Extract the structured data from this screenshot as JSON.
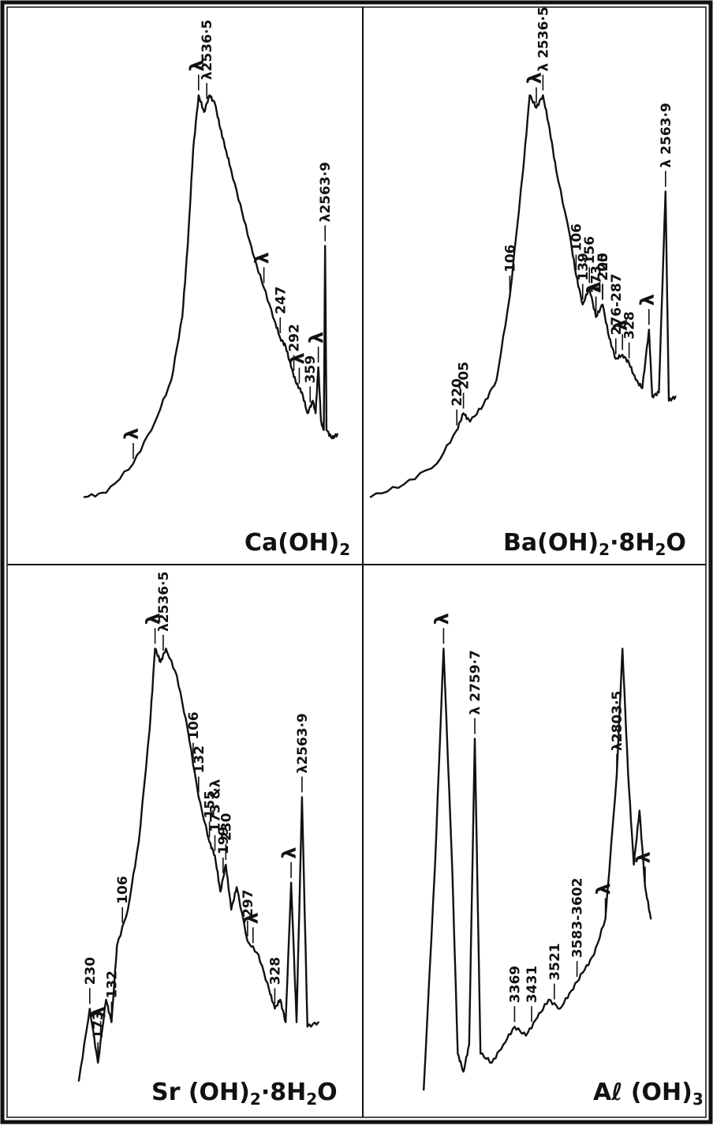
{
  "colors": {
    "ink": "#111111",
    "paper": "#ffffff"
  },
  "chart_data": [
    {
      "type": "line",
      "panel": "top-left",
      "title": "Ca(OH)",
      "title_sub": "2",
      "series": [
        {
          "values": [
            [
              0.02,
              0.02
            ],
            [
              0.1,
              0.03
            ],
            [
              0.2,
              0.1
            ],
            [
              0.28,
              0.2
            ],
            [
              0.34,
              0.3
            ],
            [
              0.38,
              0.45
            ],
            [
              0.4,
              0.62
            ],
            [
              0.42,
              0.85
            ],
            [
              0.44,
              0.98
            ],
            [
              0.46,
              0.94
            ],
            [
              0.48,
              0.98
            ],
            [
              0.5,
              0.96
            ],
            [
              0.52,
              0.9
            ],
            [
              0.54,
              0.85
            ],
            [
              0.56,
              0.8
            ],
            [
              0.6,
              0.7
            ],
            [
              0.64,
              0.6
            ],
            [
              0.68,
              0.52
            ],
            [
              0.72,
              0.44
            ],
            [
              0.74,
              0.4
            ],
            [
              0.76,
              0.38
            ],
            [
              0.78,
              0.33
            ],
            [
              0.8,
              0.29
            ],
            [
              0.82,
              0.27
            ],
            [
              0.84,
              0.22
            ],
            [
              0.86,
              0.25
            ],
            [
              0.87,
              0.22
            ],
            [
              0.88,
              0.33
            ],
            [
              0.89,
              0.2
            ],
            [
              0.9,
              0.18
            ],
            [
              0.905,
              0.62
            ],
            [
              0.91,
              0.18
            ],
            [
              0.93,
              0.16
            ],
            [
              0.95,
              0.17
            ]
          ]
        }
      ],
      "annotations": [
        {
          "text": "λ",
          "x": 0.2
        },
        {
          "text": "λ",
          "x": 0.44
        },
        {
          "text": "λ2536·5",
          "x": 0.47
        },
        {
          "text": "λ",
          "x": 0.68
        },
        {
          "text": "247",
          "x": 0.74
        },
        {
          "text": "292",
          "x": 0.79
        },
        {
          "text": "λ",
          "x": 0.81
        },
        {
          "text": "359",
          "x": 0.85
        },
        {
          "text": "λ",
          "x": 0.88
        },
        {
          "text": "λ2563·9",
          "x": 0.905
        }
      ]
    },
    {
      "type": "line",
      "panel": "top-right",
      "title": "Ba(OH)",
      "title_sub": "2",
      "title_mid": "·8H",
      "title_sub2": "2",
      "title_end": "O",
      "series": [
        {
          "values": [
            [
              0.0,
              0.02
            ],
            [
              0.1,
              0.05
            ],
            [
              0.2,
              0.1
            ],
            [
              0.26,
              0.18
            ],
            [
              0.28,
              0.22
            ],
            [
              0.3,
              0.2
            ],
            [
              0.34,
              0.24
            ],
            [
              0.38,
              0.3
            ],
            [
              0.42,
              0.5
            ],
            [
              0.46,
              0.8
            ],
            [
              0.48,
              0.98
            ],
            [
              0.5,
              0.95
            ],
            [
              0.52,
              0.98
            ],
            [
              0.54,
              0.9
            ],
            [
              0.56,
              0.8
            ],
            [
              0.6,
              0.65
            ],
            [
              0.62,
              0.55
            ],
            [
              0.64,
              0.48
            ],
            [
              0.66,
              0.52
            ],
            [
              0.68,
              0.45
            ],
            [
              0.7,
              0.48
            ],
            [
              0.72,
              0.4
            ],
            [
              0.74,
              0.35
            ],
            [
              0.76,
              0.36
            ],
            [
              0.78,
              0.34
            ],
            [
              0.8,
              0.3
            ],
            [
              0.82,
              0.28
            ],
            [
              0.84,
              0.42
            ],
            [
              0.85,
              0.26
            ],
            [
              0.87,
              0.27
            ],
            [
              0.89,
              0.75
            ],
            [
              0.9,
              0.25
            ],
            [
              0.92,
              0.26
            ]
          ]
        }
      ],
      "annotations": [
        {
          "text": "220",
          "x": 0.26
        },
        {
          "text": "205",
          "x": 0.28
        },
        {
          "text": "106",
          "x": 0.42
        },
        {
          "text": "λ",
          "x": 0.5
        },
        {
          "text": "λ 2536·5",
          "x": 0.52
        },
        {
          "text": "106",
          "x": 0.62
        },
        {
          "text": "139",
          "x": 0.64
        },
        {
          "text": "156",
          "x": 0.66
        },
        {
          "text": "173",
          "x": 0.68
        },
        {
          "text": "λ",
          "x": 0.68
        },
        {
          "text": "220",
          "x": 0.7
        },
        {
          "text": "205",
          "x": 0.7
        },
        {
          "text": "276-287",
          "x": 0.74
        },
        {
          "text": "λ",
          "x": 0.76
        },
        {
          "text": "328",
          "x": 0.78
        },
        {
          "text": "λ",
          "x": 0.84
        },
        {
          "text": "λ 2563·9",
          "x": 0.89
        }
      ]
    },
    {
      "type": "line",
      "panel": "bottom-left",
      "title": "Sr (OH)",
      "title_sub": "2",
      "title_mid": "·8H",
      "title_sub2": "2",
      "title_end": "O",
      "series": [
        {
          "values": [
            [
              0.0,
              0.02
            ],
            [
              0.04,
              0.18
            ],
            [
              0.07,
              0.06
            ],
            [
              0.1,
              0.2
            ],
            [
              0.12,
              0.15
            ],
            [
              0.14,
              0.32
            ],
            [
              0.18,
              0.4
            ],
            [
              0.22,
              0.55
            ],
            [
              0.26,
              0.8
            ],
            [
              0.28,
              0.98
            ],
            [
              0.3,
              0.95
            ],
            [
              0.32,
              0.98
            ],
            [
              0.36,
              0.92
            ],
            [
              0.4,
              0.8
            ],
            [
              0.44,
              0.65
            ],
            [
              0.48,
              0.55
            ],
            [
              0.5,
              0.52
            ],
            [
              0.52,
              0.44
            ],
            [
              0.54,
              0.5
            ],
            [
              0.56,
              0.4
            ],
            [
              0.58,
              0.45
            ],
            [
              0.62,
              0.33
            ],
            [
              0.66,
              0.3
            ],
            [
              0.7,
              0.22
            ],
            [
              0.72,
              0.18
            ],
            [
              0.74,
              0.2
            ],
            [
              0.76,
              0.15
            ],
            [
              0.78,
              0.46
            ],
            [
              0.8,
              0.15
            ],
            [
              0.82,
              0.65
            ],
            [
              0.84,
              0.14
            ],
            [
              0.88,
              0.15
            ]
          ]
        }
      ],
      "annotations": [
        {
          "text": "230",
          "x": 0.04
        },
        {
          "text": "173",
          "x": 0.07
        },
        {
          "text": "λ",
          "x": 0.08
        },
        {
          "text": "132",
          "x": 0.12
        },
        {
          "text": "106",
          "x": 0.16
        },
        {
          "text": "λ",
          "x": 0.28
        },
        {
          "text": "λ2536·5",
          "x": 0.31
        },
        {
          "text": "106",
          "x": 0.42
        },
        {
          "text": "132",
          "x": 0.44
        },
        {
          "text": "155",
          "x": 0.48
        },
        {
          "text": "173 &λ",
          "x": 0.5
        },
        {
          "text": "199",
          "x": 0.53
        },
        {
          "text": "230",
          "x": 0.54
        },
        {
          "text": "297",
          "x": 0.62
        },
        {
          "text": "λ",
          "x": 0.64
        },
        {
          "text": "328",
          "x": 0.72
        },
        {
          "text": "λ",
          "x": 0.78
        },
        {
          "text": "λ2563·9",
          "x": 0.82
        }
      ]
    },
    {
      "type": "line",
      "panel": "bottom-right",
      "title": "Aℓ (OH)",
      "title_sub": "3",
      "series": [
        {
          "values": [
            [
              0.02,
              0.0
            ],
            [
              0.06,
              0.5
            ],
            [
              0.09,
              0.98
            ],
            [
              0.12,
              0.5
            ],
            [
              0.14,
              0.08
            ],
            [
              0.16,
              0.04
            ],
            [
              0.18,
              0.1
            ],
            [
              0.2,
              0.78
            ],
            [
              0.22,
              0.08
            ],
            [
              0.26,
              0.06
            ],
            [
              0.3,
              0.1
            ],
            [
              0.34,
              0.14
            ],
            [
              0.38,
              0.12
            ],
            [
              0.42,
              0.16
            ],
            [
              0.46,
              0.2
            ],
            [
              0.5,
              0.18
            ],
            [
              0.54,
              0.22
            ],
            [
              0.58,
              0.26
            ],
            [
              0.62,
              0.3
            ],
            [
              0.66,
              0.38
            ],
            [
              0.7,
              0.7
            ],
            [
              0.72,
              0.98
            ],
            [
              0.74,
              0.7
            ],
            [
              0.76,
              0.5
            ],
            [
              0.78,
              0.62
            ],
            [
              0.8,
              0.45
            ],
            [
              0.82,
              0.38
            ]
          ]
        }
      ],
      "annotations": [
        {
          "text": "λ",
          "x": 0.09
        },
        {
          "text": "λ 2759·7",
          "x": 0.2
        },
        {
          "text": "3369",
          "x": 0.34
        },
        {
          "text": "3431",
          "x": 0.4
        },
        {
          "text": "3521",
          "x": 0.48
        },
        {
          "text": "3583-3602",
          "x": 0.56
        },
        {
          "text": "λ",
          "x": 0.66
        },
        {
          "text": "λ2803·5",
          "x": 0.7
        },
        {
          "text": "λ",
          "x": 0.8
        }
      ]
    }
  ]
}
